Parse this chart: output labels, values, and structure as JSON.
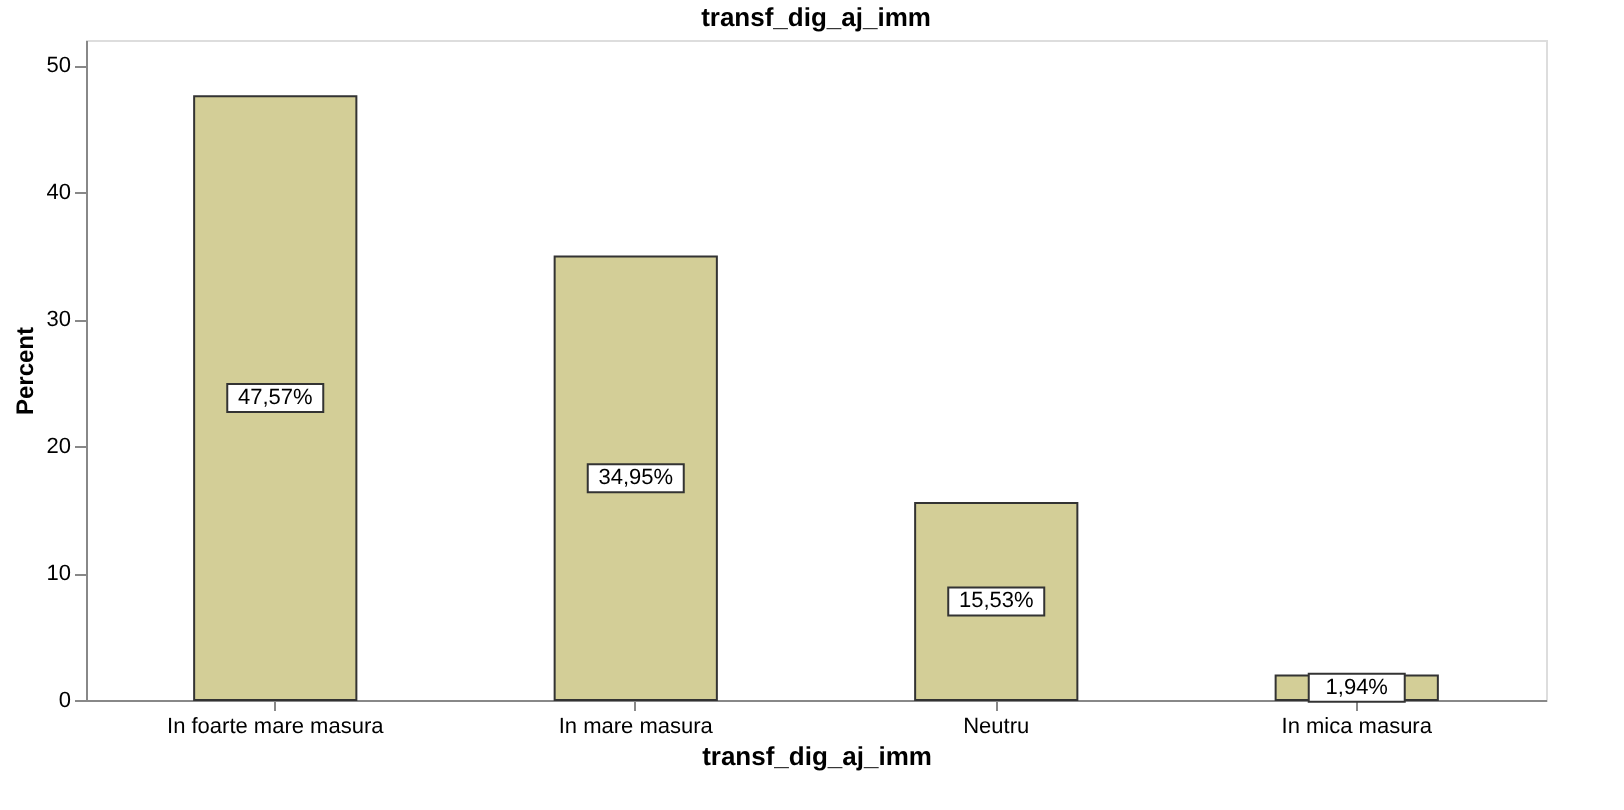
{
  "chart_data": {
    "type": "bar",
    "title": "transf_dig_aj_imm",
    "xlabel": "transf_dig_aj_imm",
    "ylabel": "Percent",
    "categories": [
      "In foarte mare masura",
      "In mare masura",
      "Neutru",
      "In mica masura"
    ],
    "values": [
      47.57,
      34.95,
      15.53,
      1.94
    ],
    "value_labels": [
      "47,57%",
      "34,95%",
      "15,53%",
      "1,94%"
    ],
    "color": "#d3ce97",
    "ylim": [
      0,
      52
    ],
    "yticks": [
      0,
      10,
      20,
      30,
      40,
      50
    ],
    "grid": false
  }
}
